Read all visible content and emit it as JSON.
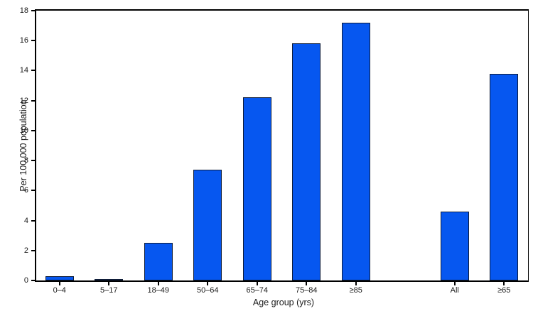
{
  "chart_data": {
    "type": "bar",
    "title": "",
    "xlabel": "Age group (yrs)",
    "ylabel": "Per 100,000 population",
    "categories": [
      "0–4",
      "5–17",
      "18–49",
      "50–64",
      "65–74",
      "75–84",
      "≥85",
      "",
      "All",
      "≥65"
    ],
    "values": [
      0.3,
      0.1,
      2.5,
      7.4,
      12.2,
      15.8,
      17.2,
      null,
      4.6,
      13.8
    ],
    "ylim": [
      0,
      18
    ],
    "ytick_step": 2,
    "ytick_labels": [
      "0",
      "2",
      "4",
      "6",
      "8",
      "10",
      "12",
      "14",
      "16",
      "18"
    ],
    "grid": "off",
    "legend": "none",
    "bar_color": "#0657f0",
    "bar_border_color": "#0e1c38",
    "axis_color": "#000000",
    "background": "#ffffff"
  }
}
